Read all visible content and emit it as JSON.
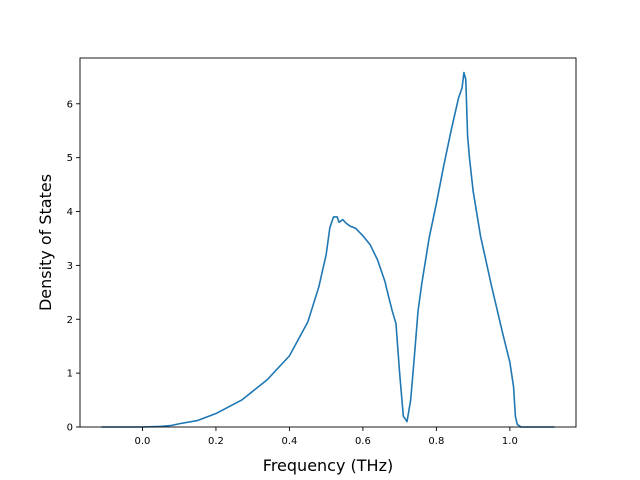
{
  "chart_data": {
    "type": "line",
    "title": "",
    "xlabel": "Frequency (THz)",
    "ylabel": "Density of States",
    "xlim": [
      -0.17,
      1.18
    ],
    "ylim": [
      0,
      6.85
    ],
    "x_ticks": [
      0.0,
      0.2,
      0.4,
      0.6,
      0.8,
      1.0
    ],
    "x_tick_labels": [
      "0.0",
      "0.2",
      "0.4",
      "0.6",
      "0.8",
      "1.0"
    ],
    "y_ticks": [
      0,
      1,
      2,
      3,
      4,
      5,
      6
    ],
    "y_tick_labels": [
      "0",
      "1",
      "2",
      "3",
      "4",
      "5",
      "6"
    ],
    "grid": false,
    "legend": "none",
    "series": [
      {
        "color": "#1f77b4",
        "x": [
          -0.11,
          0.0,
          0.05,
          0.08,
          0.1,
          0.15,
          0.2,
          0.27,
          0.34,
          0.4,
          0.45,
          0.48,
          0.5,
          0.51,
          0.52,
          0.53,
          0.535,
          0.545,
          0.555,
          0.565,
          0.58,
          0.6,
          0.62,
          0.64,
          0.66,
          0.67,
          0.68,
          0.69,
          0.7,
          0.71,
          0.72,
          0.73,
          0.74,
          0.75,
          0.76,
          0.78,
          0.8,
          0.82,
          0.84,
          0.85,
          0.86,
          0.87,
          0.875,
          0.88,
          0.885,
          0.89,
          0.9,
          0.92,
          0.95,
          0.98,
          1.0,
          1.01,
          1.015,
          1.02,
          1.03,
          1.12
        ],
        "y": [
          0.0,
          0.0,
          0.01,
          0.03,
          0.06,
          0.12,
          0.25,
          0.5,
          0.88,
          1.32,
          1.95,
          2.6,
          3.2,
          3.7,
          3.9,
          3.9,
          3.8,
          3.85,
          3.78,
          3.73,
          3.69,
          3.55,
          3.38,
          3.1,
          2.7,
          2.42,
          2.15,
          1.92,
          1.0,
          0.2,
          0.1,
          0.5,
          1.3,
          2.15,
          2.65,
          3.5,
          4.15,
          4.85,
          5.5,
          5.8,
          6.1,
          6.3,
          6.58,
          6.45,
          5.4,
          5.0,
          4.38,
          3.55,
          2.62,
          1.75,
          1.2,
          0.75,
          0.2,
          0.05,
          0.0,
          0.0
        ]
      }
    ]
  }
}
